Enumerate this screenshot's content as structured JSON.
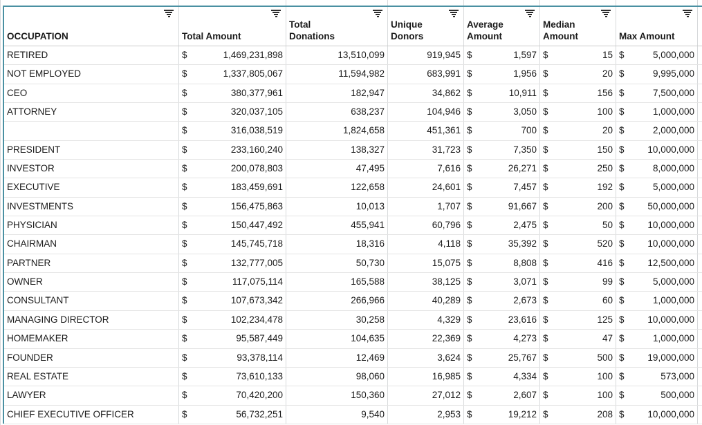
{
  "app": {
    "type": "spreadsheet-grid"
  },
  "colors": {
    "frozen_border": "#4a90a2",
    "gridline_vertical": "#d7d9db",
    "gridline_horizontal": "#e4e4e4",
    "text": "#1a1a1a"
  },
  "icons": {
    "header_filter": "filter-icon"
  },
  "table": {
    "currency_symbol": "$",
    "columns": [
      {
        "id": "occupation",
        "label": "OCCUPATION",
        "format": "text"
      },
      {
        "id": "total_amount",
        "label": "Total Amount",
        "format": "currency"
      },
      {
        "id": "total_donations",
        "label": "Total Donations",
        "format": "number"
      },
      {
        "id": "unique_donors",
        "label": "Unique Donors",
        "format": "number"
      },
      {
        "id": "average_amount",
        "label": "Average Amount",
        "format": "currency"
      },
      {
        "id": "median_amount",
        "label": "Median Amount",
        "format": "currency"
      },
      {
        "id": "max_amount",
        "label": "Max Amount",
        "format": "currency"
      }
    ],
    "rows": [
      {
        "occupation": "RETIRED",
        "total_amount": "1,469,231,898",
        "total_donations": "13,510,099",
        "unique_donors": "919,945",
        "average_amount": "1,597",
        "median_amount": "15",
        "max_amount": "5,000,000"
      },
      {
        "occupation": "NOT EMPLOYED",
        "total_amount": "1,337,805,067",
        "total_donations": "11,594,982",
        "unique_donors": "683,991",
        "average_amount": "1,956",
        "median_amount": "20",
        "max_amount": "9,995,000"
      },
      {
        "occupation": "CEO",
        "total_amount": "380,377,961",
        "total_donations": "182,947",
        "unique_donors": "34,862",
        "average_amount": "10,911",
        "median_amount": "156",
        "max_amount": "7,500,000"
      },
      {
        "occupation": "ATTORNEY",
        "total_amount": "320,037,105",
        "total_donations": "638,237",
        "unique_donors": "104,946",
        "average_amount": "3,050",
        "median_amount": "100",
        "max_amount": "1,000,000"
      },
      {
        "occupation": "",
        "total_amount": "316,038,519",
        "total_donations": "1,824,658",
        "unique_donors": "451,361",
        "average_amount": "700",
        "median_amount": "20",
        "max_amount": "2,000,000"
      },
      {
        "occupation": "PRESIDENT",
        "total_amount": "233,160,240",
        "total_donations": "138,327",
        "unique_donors": "31,723",
        "average_amount": "7,350",
        "median_amount": "150",
        "max_amount": "10,000,000"
      },
      {
        "occupation": "INVESTOR",
        "total_amount": "200,078,803",
        "total_donations": "47,495",
        "unique_donors": "7,616",
        "average_amount": "26,271",
        "median_amount": "250",
        "max_amount": "8,000,000"
      },
      {
        "occupation": "EXECUTIVE",
        "total_amount": "183,459,691",
        "total_donations": "122,658",
        "unique_donors": "24,601",
        "average_amount": "7,457",
        "median_amount": "192",
        "max_amount": "5,000,000"
      },
      {
        "occupation": "INVESTMENTS",
        "total_amount": "156,475,863",
        "total_donations": "10,013",
        "unique_donors": "1,707",
        "average_amount": "91,667",
        "median_amount": "200",
        "max_amount": "50,000,000"
      },
      {
        "occupation": "PHYSICIAN",
        "total_amount": "150,447,492",
        "total_donations": "455,941",
        "unique_donors": "60,796",
        "average_amount": "2,475",
        "median_amount": "50",
        "max_amount": "10,000,000"
      },
      {
        "occupation": "CHAIRMAN",
        "total_amount": "145,745,718",
        "total_donations": "18,316",
        "unique_donors": "4,118",
        "average_amount": "35,392",
        "median_amount": "520",
        "max_amount": "10,000,000"
      },
      {
        "occupation": "PARTNER",
        "total_amount": "132,777,005",
        "total_donations": "50,730",
        "unique_donors": "15,075",
        "average_amount": "8,808",
        "median_amount": "416",
        "max_amount": "12,500,000"
      },
      {
        "occupation": "OWNER",
        "total_amount": "117,075,114",
        "total_donations": "165,588",
        "unique_donors": "38,125",
        "average_amount": "3,071",
        "median_amount": "99",
        "max_amount": "5,000,000"
      },
      {
        "occupation": "CONSULTANT",
        "total_amount": "107,673,342",
        "total_donations": "266,966",
        "unique_donors": "40,289",
        "average_amount": "2,673",
        "median_amount": "60",
        "max_amount": "1,000,000"
      },
      {
        "occupation": "MANAGING DIRECTOR",
        "total_amount": "102,234,478",
        "total_donations": "30,258",
        "unique_donors": "4,329",
        "average_amount": "23,616",
        "median_amount": "125",
        "max_amount": "10,000,000"
      },
      {
        "occupation": "HOMEMAKER",
        "total_amount": "95,587,449",
        "total_donations": "104,635",
        "unique_donors": "22,369",
        "average_amount": "4,273",
        "median_amount": "47",
        "max_amount": "1,000,000"
      },
      {
        "occupation": "FOUNDER",
        "total_amount": "93,378,114",
        "total_donations": "12,469",
        "unique_donors": "3,624",
        "average_amount": "25,767",
        "median_amount": "500",
        "max_amount": "19,000,000"
      },
      {
        "occupation": "REAL ESTATE",
        "total_amount": "73,610,133",
        "total_donations": "98,060",
        "unique_donors": "16,985",
        "average_amount": "4,334",
        "median_amount": "100",
        "max_amount": "573,000"
      },
      {
        "occupation": "LAWYER",
        "total_amount": "70,420,200",
        "total_donations": "150,360",
        "unique_donors": "27,012",
        "average_amount": "2,607",
        "median_amount": "100",
        "max_amount": "500,000"
      },
      {
        "occupation": "CHIEF EXECUTIVE OFFICER",
        "total_amount": "56,732,251",
        "total_donations": "9,540",
        "unique_donors": "2,953",
        "average_amount": "19,212",
        "median_amount": "208",
        "max_amount": "10,000,000"
      }
    ]
  }
}
